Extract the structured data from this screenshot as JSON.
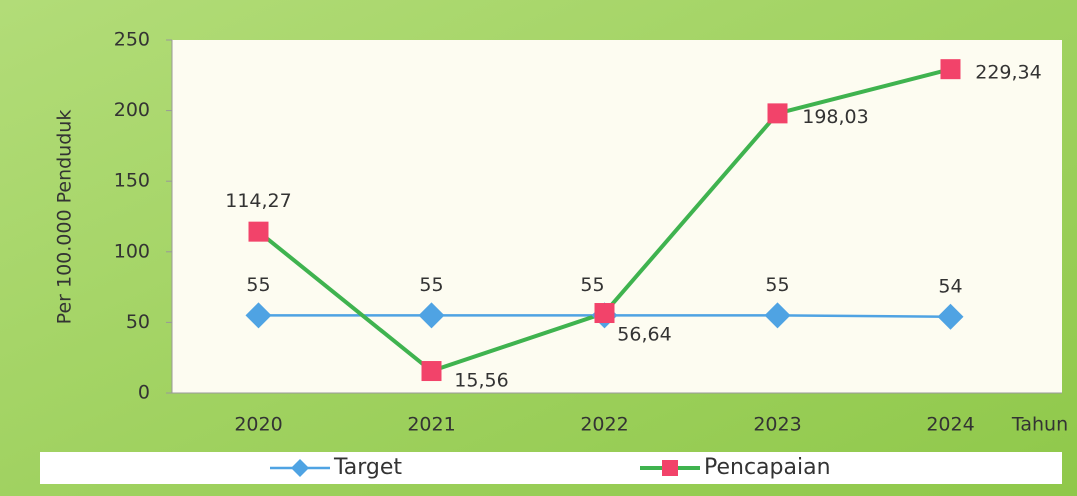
{
  "chart_data": {
    "type": "line",
    "y_label": "Per 100.000 Penduduk",
    "x_label": "Tahun",
    "categories": [
      "2020",
      "2021",
      "2022",
      "2023",
      "2024"
    ],
    "series": [
      {
        "name": "Target",
        "color": "#4fa3e3",
        "marker": "diamond",
        "values": [
          55,
          55,
          55,
          55,
          54
        ]
      },
      {
        "name": "Pencapaian",
        "color": "#3fb34f",
        "marker": "square",
        "marker_color": "#f2436a",
        "values": [
          114.27,
          15.56,
          56.64,
          198.03,
          229.34
        ],
        "value_labels": [
          "114,27",
          "15,56",
          "56,64",
          "198,03",
          "229,34"
        ]
      }
    ],
    "ylim": [
      0,
      250
    ],
    "yticks": [
      0,
      50,
      100,
      150,
      200,
      250
    ],
    "grid": false,
    "legend": "bottom"
  }
}
